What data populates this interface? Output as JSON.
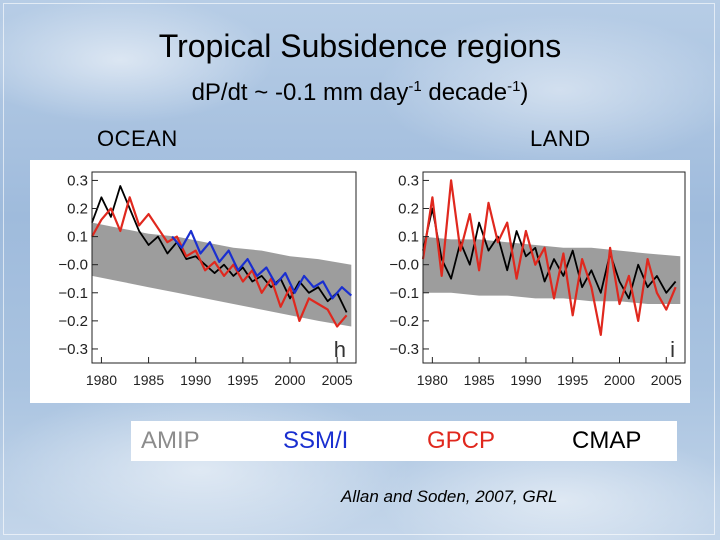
{
  "slide": {
    "title": "Tropical Subsidence regions",
    "subtitle_main": "dP/dt ~ -0.1 mm day",
    "subtitle_exp1": "-1",
    "subtitle_mid": " decade",
    "subtitle_exp2": "-1",
    "subtitle_end": ")",
    "citation": "Allan and Soden, 2007, GRL"
  },
  "legend": [
    {
      "label": "AMIP",
      "color": "#8c8c8c"
    },
    {
      "label": "SSM/I",
      "color": "#1a2fd0"
    },
    {
      "label": "GPCP",
      "color": "#e0281e"
    },
    {
      "label": "CMAP",
      "color": "#000000"
    }
  ],
  "chart_data": [
    {
      "type": "line",
      "title": "OCEAN",
      "panel_letter": "h",
      "xlim": [
        1979,
        2007
      ],
      "ylim": [
        -0.35,
        0.33
      ],
      "x_ticks": [
        1980,
        1985,
        1990,
        1995,
        2000,
        2005
      ],
      "y_ticks": [
        0.3,
        0.2,
        0.1,
        0.0,
        -0.1,
        -0.2,
        -0.3
      ],
      "y_tick_labels": [
        "0.3",
        "0.2",
        "0.1",
        "−0.0",
        "−0.1",
        "−0.2",
        "−0.3"
      ],
      "grid": false,
      "series": [
        {
          "name": "AMIP",
          "style": "band",
          "color": "#8c8c8c",
          "x": [
            1979,
            1982,
            1985,
            1988,
            1991,
            1994,
            1997,
            2000,
            2003,
            2006.5
          ],
          "upper": [
            0.15,
            0.13,
            0.11,
            0.1,
            0.08,
            0.06,
            0.05,
            0.03,
            0.02,
            0.0
          ],
          "lower": [
            -0.04,
            -0.06,
            -0.08,
            -0.1,
            -0.12,
            -0.14,
            -0.16,
            -0.18,
            -0.2,
            -0.22
          ]
        },
        {
          "name": "CMAP",
          "color": "#000000",
          "x": [
            1979,
            1980,
            1981,
            1982,
            1983,
            1984,
            1985,
            1986,
            1987,
            1988,
            1989,
            1990,
            1991,
            1992,
            1993,
            1994,
            1995,
            1996,
            1997,
            1998,
            1999,
            2000,
            2001,
            2002,
            2003,
            2004,
            2005,
            2006
          ],
          "y": [
            0.15,
            0.24,
            0.17,
            0.28,
            0.2,
            0.12,
            0.07,
            0.1,
            0.04,
            0.08,
            0.02,
            0.03,
            0.0,
            -0.03,
            0.0,
            -0.04,
            -0.01,
            -0.06,
            -0.04,
            -0.08,
            -0.05,
            -0.12,
            -0.06,
            -0.1,
            -0.08,
            -0.13,
            -0.1,
            -0.17
          ]
        },
        {
          "name": "GPCP",
          "color": "#e0281e",
          "x": [
            1979,
            1980,
            1981,
            1982,
            1983,
            1984,
            1985,
            1986,
            1987,
            1988,
            1989,
            1990,
            1991,
            1992,
            1993,
            1994,
            1995,
            1996,
            1997,
            1998,
            1999,
            2000,
            2001,
            2002,
            2003,
            2004,
            2005,
            2006
          ],
          "y": [
            0.1,
            0.16,
            0.2,
            0.12,
            0.24,
            0.14,
            0.18,
            0.13,
            0.08,
            0.1,
            0.03,
            0.05,
            -0.02,
            0.01,
            -0.04,
            0.0,
            -0.06,
            -0.02,
            -0.1,
            -0.05,
            -0.15,
            -0.08,
            -0.2,
            -0.12,
            -0.14,
            -0.16,
            -0.22,
            -0.18
          ]
        },
        {
          "name": "SSM/I",
          "color": "#1a2fd0",
          "x": [
            1987.5,
            1988.5,
            1989.5,
            1990.5,
            1991.5,
            1992.5,
            1993.5,
            1994.5,
            1995.5,
            1996.5,
            1997.5,
            1998.5,
            1999.5,
            2000.5,
            2001.5,
            2002.5,
            2003.5,
            2004.5,
            2005.5,
            2006.5
          ],
          "y": [
            0.1,
            0.06,
            0.12,
            0.04,
            0.08,
            0.01,
            0.05,
            -0.02,
            0.02,
            -0.04,
            -0.01,
            -0.07,
            -0.03,
            -0.1,
            -0.04,
            -0.08,
            -0.06,
            -0.12,
            -0.08,
            -0.11
          ]
        }
      ]
    },
    {
      "type": "line",
      "title": "LAND",
      "panel_letter": "i",
      "xlim": [
        1979,
        2007
      ],
      "ylim": [
        -0.35,
        0.33
      ],
      "x_ticks": [
        1980,
        1985,
        1990,
        1995,
        2000,
        2005
      ],
      "y_ticks": [
        0.3,
        0.2,
        0.1,
        0.0,
        -0.1,
        -0.2,
        -0.3
      ],
      "y_tick_labels": [
        "0.3",
        "0.2",
        "0.1",
        "−0.0",
        "−0.1",
        "−0.2",
        "−0.3"
      ],
      "grid": false,
      "series": [
        {
          "name": "AMIP",
          "style": "band",
          "color": "#8c8c8c",
          "x": [
            1979,
            1982,
            1985,
            1988,
            1991,
            1994,
            1997,
            2000,
            2003,
            2006.5
          ],
          "upper": [
            0.1,
            0.09,
            0.09,
            0.08,
            0.07,
            0.06,
            0.06,
            0.05,
            0.04,
            0.03
          ],
          "lower": [
            -0.1,
            -0.1,
            -0.11,
            -0.11,
            -0.12,
            -0.12,
            -0.13,
            -0.13,
            -0.14,
            -0.14
          ]
        },
        {
          "name": "CMAP",
          "color": "#000000",
          "x": [
            1979,
            1980,
            1981,
            1982,
            1983,
            1984,
            1985,
            1986,
            1987,
            1988,
            1989,
            1990,
            1991,
            1992,
            1993,
            1994,
            1995,
            1996,
            1997,
            1998,
            1999,
            2000,
            2001,
            2002,
            2003,
            2004,
            2005,
            2006
          ],
          "y": [
            0.05,
            0.2,
            0.02,
            -0.05,
            0.08,
            0.0,
            0.15,
            0.05,
            0.1,
            -0.02,
            0.12,
            0.03,
            0.06,
            -0.06,
            0.02,
            -0.04,
            0.05,
            -0.08,
            -0.02,
            -0.1,
            0.04,
            -0.06,
            -0.12,
            0.0,
            -0.08,
            -0.04,
            -0.1,
            -0.06
          ]
        },
        {
          "name": "GPCP",
          "color": "#e0281e",
          "x": [
            1979,
            1980,
            1981,
            1982,
            1983,
            1984,
            1985,
            1986,
            1987,
            1988,
            1989,
            1990,
            1991,
            1992,
            1993,
            1994,
            1995,
            1996,
            1997,
            1998,
            1999,
            2000,
            2001,
            2002,
            2003,
            2004,
            2005,
            2006
          ],
          "y": [
            0.02,
            0.24,
            -0.04,
            0.3,
            0.05,
            0.18,
            -0.02,
            0.22,
            0.08,
            0.15,
            -0.05,
            0.12,
            0.0,
            0.06,
            -0.12,
            0.04,
            -0.18,
            0.02,
            -0.08,
            -0.25,
            0.06,
            -0.14,
            -0.04,
            -0.2,
            0.02,
            -0.1,
            -0.16,
            -0.08
          ]
        }
      ]
    }
  ]
}
